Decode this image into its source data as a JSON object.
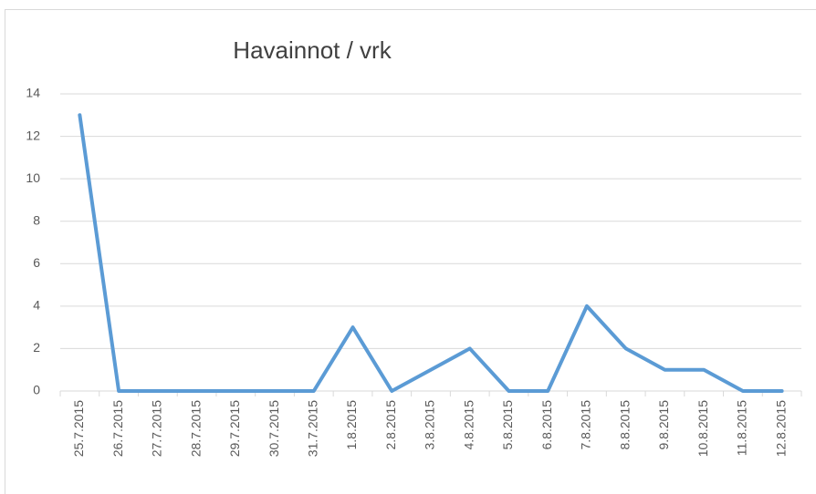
{
  "chart_data": {
    "type": "line",
    "title": "Havainnot  / vrk",
    "categories": [
      "25.7.2015",
      "26.7.2015",
      "27.7.2015",
      "28.7.2015",
      "29.7.2015",
      "30.7.2015",
      "31.7.2015",
      "1.8.2015",
      "2.8.2015",
      "3.8.2015",
      "4.8.2015",
      "5.8.2015",
      "6.8.2015",
      "7.8.2015",
      "8.8.2015",
      "9.8.2015",
      "10.8.2015",
      "11.8.2015",
      "12.8.2015"
    ],
    "values": [
      13,
      0,
      0,
      0,
      0,
      0,
      0,
      3,
      0,
      1,
      2,
      0,
      0,
      4,
      2,
      1,
      1,
      0,
      0
    ],
    "color": "#5b9bd5",
    "ylim": [
      0,
      14
    ],
    "yticks": [
      0,
      2,
      4,
      6,
      8,
      10,
      12,
      14
    ],
    "grid": true
  }
}
